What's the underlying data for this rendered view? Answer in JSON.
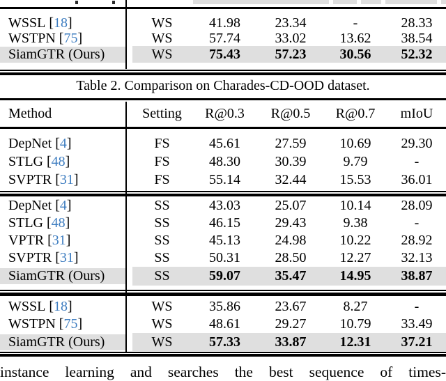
{
  "colors": {
    "citation_blue": "#3e7dc0",
    "highlight_gray": "#dfdfdf"
  },
  "punct": {
    "open_bracket": "[",
    "close_bracket": "]"
  },
  "top_table": {
    "rows": [
      {
        "method": "WSSL",
        "cite": "18",
        "setting": "WS",
        "values": [
          "41.98",
          "23.34",
          "-",
          "28.33"
        ],
        "highlight": false
      },
      {
        "method": "WSTPN",
        "cite": "75",
        "setting": "WS",
        "values": [
          "57.74",
          "33.02",
          "13.62",
          "38.54"
        ],
        "highlight": false
      },
      {
        "method": "SiamGTR (Ours)",
        "cite": null,
        "setting": "WS",
        "values": [
          "75.43",
          "57.23",
          "30.56",
          "52.32"
        ],
        "highlight": true
      }
    ]
  },
  "caption": "Table 2. Comparison on Charades-CD-OOD dataset.",
  "table2": {
    "headers": [
      "Method",
      "Setting",
      "R@0.3",
      "R@0.5",
      "R@0.7",
      "mIoU"
    ],
    "sections": {
      "fs": {
        "rows": [
          {
            "method": "DepNet",
            "cite": "4",
            "setting": "FS",
            "values": [
              "45.61",
              "27.59",
              "10.69",
              "29.30"
            ],
            "highlight": false
          },
          {
            "method": "STLG",
            "cite": "48",
            "setting": "FS",
            "values": [
              "48.30",
              "30.39",
              "9.79",
              "-"
            ],
            "highlight": false
          },
          {
            "method": "SVPTR",
            "cite": "31",
            "setting": "FS",
            "values": [
              "55.14",
              "32.44",
              "15.53",
              "36.01"
            ],
            "highlight": false
          }
        ]
      },
      "ss": {
        "rows": [
          {
            "method": "DepNet",
            "cite": "4",
            "setting": "SS",
            "values": [
              "43.03",
              "25.07",
              "10.14",
              "28.09"
            ],
            "highlight": false
          },
          {
            "method": "STLG",
            "cite": "48",
            "setting": "SS",
            "values": [
              "46.15",
              "29.43",
              "9.38",
              "-"
            ],
            "highlight": false
          },
          {
            "method": "VPTR",
            "cite": "31",
            "setting": "SS",
            "values": [
              "45.13",
              "24.98",
              "10.22",
              "28.92"
            ],
            "highlight": false
          },
          {
            "method": "SVPTR",
            "cite": "31",
            "setting": "SS",
            "values": [
              "50.31",
              "28.50",
              "12.27",
              "32.13"
            ],
            "highlight": false
          },
          {
            "method": "SiamGTR (Ours)",
            "cite": null,
            "setting": "SS",
            "values": [
              "59.07",
              "35.47",
              "14.95",
              "38.87"
            ],
            "highlight": true
          }
        ]
      },
      "ws": {
        "rows": [
          {
            "method": "WSSL",
            "cite": "18",
            "setting": "WS",
            "values": [
              "35.86",
              "23.67",
              "8.27",
              "-"
            ],
            "highlight": false
          },
          {
            "method": "WSTPN",
            "cite": "75",
            "setting": "WS",
            "values": [
              "48.61",
              "29.27",
              "10.79",
              "33.49"
            ],
            "highlight": false
          },
          {
            "method": "SiamGTR (Ours)",
            "cite": null,
            "setting": "WS",
            "values": [
              "57.33",
              "33.87",
              "12.31",
              "37.21"
            ],
            "highlight": true
          }
        ]
      }
    }
  },
  "body_text": "instance learning and searches the best sequence of times-"
}
